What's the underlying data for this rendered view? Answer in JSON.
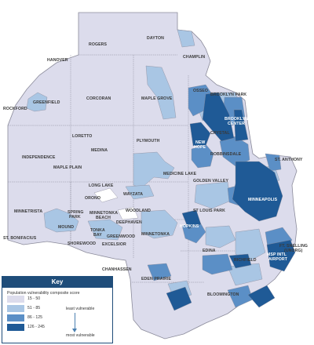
{
  "map": {
    "colors": {
      "class1": "#dcdcec",
      "class2": "#a9c6e4",
      "class3": "#5b8fc6",
      "class4": "#1f5a96",
      "border": "#8a8a9a"
    },
    "labels": {
      "rogers": "ROGERS",
      "dayton": "DAYTON",
      "champlin": "CHAMPLIN",
      "hanover": "HANOVER",
      "osseo": "OSSEO",
      "brooklyn_park": "BROOKLYN PARK",
      "brooklyn_center_1": "BROOKLYN",
      "brooklyn_center_2": "CENTER",
      "rockford": "ROCKFORD",
      "greenfield": "GREENFIELD",
      "corcoran": "CORCORAN",
      "maple_grove": "MAPLE GROVE",
      "crystal": "CRYSTAL",
      "new_hope_1": "NEW",
      "new_hope_2": "HOPE",
      "robbinsdale": "ROBBINSDALE",
      "st_anthony": "ST. ANTHONY",
      "loretto": "LORETTO",
      "medina": "MEDINA",
      "plymouth": "PLYMOUTH",
      "independence": "INDEPENDENCE",
      "maple_plain": "MAPLE PLAIN",
      "medicine_lake": "MEDICINE LAKE",
      "golden_valley": "GOLDEN VALLEY",
      "long_lake": "LONG LAKE",
      "orono": "ORONO",
      "wayzata": "WAYZATA",
      "minneapolis": "MINNEAPOLIS",
      "minnetrista": "MINNETRISTA",
      "spring_park_1": "SPRING",
      "spring_park_2": "PARK",
      "minnetonka_beach_1": "MINNETONKA",
      "minnetonka_beach_2": "BEACH",
      "woodland": "WOODLAND",
      "st_louis_park": "ST LOUIS PARK",
      "deephaven": "DEEPHAVEN",
      "mound": "MOUND",
      "tonka_bay_1": "TONKA",
      "tonka_bay_2": "BAY",
      "greenwood": "GREENWOOD",
      "minnetonka": "MINNETONKA",
      "hopkins": "HOPKINS",
      "st_bonifacius": "ST. BONIFACIUS",
      "shorewood": "SHOREWOOD",
      "excelsior": "EXCELSIOR",
      "edina": "EDINA",
      "ft_snelling_1": "FT. SNELLING",
      "ft_snelling_2": "(UNORG)",
      "msp_airport_1": "MSP INTL",
      "msp_airport_2": "AIRPORT",
      "richfield": "RICHFIELD",
      "chanhassen": "CHANHASSEN",
      "eden_prairie": "EDEN PRAIRIE",
      "bloomington": "BLOOMINGTON"
    }
  },
  "legend": {
    "title": "Key",
    "subtitle": "Population vulnerability composite score",
    "classes": [
      {
        "range": "15 - 50",
        "color": "#dcdcec"
      },
      {
        "range": "51 - 85",
        "color": "#a9c6e4"
      },
      {
        "range": "86 - 125",
        "color": "#5b8fc6"
      },
      {
        "range": "126 - 245",
        "color": "#1f5a96"
      }
    ],
    "least_label": "least vulnerable",
    "most_label": "most vulnerable"
  }
}
